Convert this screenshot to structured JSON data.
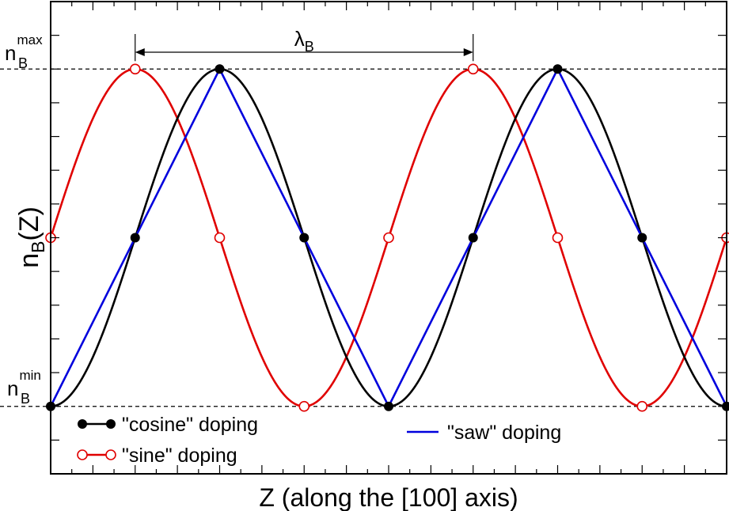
{
  "chart_data": {
    "type": "line",
    "xlabel": "Z (along the [100] axis)",
    "ylabel": {
      "main": "n",
      "sub": "B",
      "suffix": "(Z)"
    },
    "y_ticks_labeled": [
      {
        "main": "n",
        "sub": "B",
        "sup": "max",
        "value": 1
      },
      {
        "main": "n",
        "sub": "B",
        "sup": "min",
        "value": -1
      }
    ],
    "annotation": {
      "main": "λ",
      "sub": "B",
      "from_x": 1,
      "to_x": 5
    },
    "xlim": [
      0,
      8
    ],
    "ylim": [
      -1.4,
      1.4
    ],
    "grid": false,
    "reference_lines": [
      1,
      -1
    ],
    "legend": [
      {
        "label": "\"cosine\" doping",
        "series": "cosine"
      },
      {
        "label": "\"sine\" doping",
        "series": "sine"
      },
      {
        "label": "\"saw\" doping",
        "series": "saw"
      }
    ],
    "series": [
      {
        "key": "cosine",
        "color": "#000000",
        "marker": "filled-circle",
        "markers_x": [
          0,
          1,
          2,
          3,
          4,
          5,
          6,
          7,
          8
        ]
      },
      {
        "key": "sine",
        "color": "#e00000",
        "marker": "open-circle",
        "markers_x": [
          0,
          1,
          2,
          3,
          4,
          5,
          6,
          7,
          8
        ]
      },
      {
        "key": "saw",
        "color": "#0000dd",
        "marker": "none",
        "points": [
          [
            0,
            -1
          ],
          [
            2,
            1
          ],
          [
            4,
            -1
          ],
          [
            6,
            1
          ],
          [
            8,
            -1
          ]
        ]
      }
    ]
  }
}
